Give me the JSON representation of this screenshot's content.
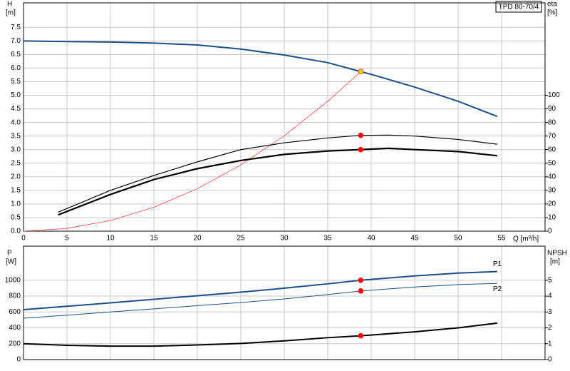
{
  "chart_data": [
    {
      "type": "line",
      "title": "TPD 80-70/4",
      "y_label": "H",
      "y_unit": "[m]",
      "y2_label": "eta",
      "y2_unit": "[%]",
      "x_label": "Q [m³/h]",
      "xlim": [
        0,
        60
      ],
      "xticks": [
        0,
        5,
        10,
        15,
        20,
        25,
        30,
        35,
        40,
        45,
        50,
        55
      ],
      "ylim": [
        0,
        8.4
      ],
      "yticks": [
        {
          "value": 0,
          "label": "0.0"
        },
        {
          "value": 0.5,
          "label": "0.5"
        },
        {
          "value": 1,
          "label": "1.0"
        },
        {
          "value": 1.5,
          "label": "1.5"
        },
        {
          "value": 2,
          "label": "2.0"
        },
        {
          "value": 2.5,
          "label": "2.5"
        },
        {
          "value": 3,
          "label": "3.0"
        },
        {
          "value": 3.5,
          "label": "3.5"
        },
        {
          "value": 4,
          "label": "4.0"
        },
        {
          "value": 4.5,
          "label": "4.5"
        },
        {
          "value": 5,
          "label": "5.0"
        },
        {
          "value": 5.5,
          "label": "5.5"
        },
        {
          "value": 6,
          "label": "6.0"
        },
        {
          "value": 6.5,
          "label": "6.5"
        },
        {
          "value": 7,
          "label": "7.0"
        },
        {
          "value": 7.5,
          "label": "7.5"
        }
      ],
      "y2lim": [
        0,
        168
      ],
      "y2ticks": [
        0,
        10,
        20,
        30,
        40,
        50,
        60,
        70,
        80,
        90,
        100
      ],
      "grid": true,
      "series": [
        {
          "color": "#ff4a4a",
          "width": 0.8,
          "x": [
            0,
            5,
            10,
            15,
            20,
            25,
            30,
            35,
            38.8
          ],
          "values": [
            0,
            0.1,
            0.39,
            0.88,
            1.56,
            2.44,
            3.51,
            4.78,
            5.87
          ]
        },
        {
          "color": "#1b4f8a",
          "width": 2,
          "x": [
            0,
            4,
            10,
            15,
            20,
            25,
            30,
            35,
            38.8,
            40,
            45,
            50,
            54.5
          ],
          "values": [
            7.0,
            6.98,
            6.96,
            6.92,
            6.85,
            6.7,
            6.48,
            6.2,
            5.87,
            5.77,
            5.3,
            4.78,
            4.22
          ],
          "marker_index": 8,
          "marker_color": "#ffd400"
        },
        {
          "color": "#000000",
          "width": 1.2,
          "axis": "y2",
          "x": [
            4,
            10,
            15,
            20,
            25,
            30,
            35,
            38.8,
            42,
            45,
            50,
            54.5
          ],
          "values": [
            14,
            30,
            41,
            51,
            60,
            65,
            68.6,
            70.5,
            70.7,
            70,
            67.5,
            64
          ],
          "marker_index": 7,
          "marker_color": "#ff0000"
        },
        {
          "color": "#000000",
          "width": 2.2,
          "axis": "y2",
          "x": [
            4,
            10,
            15,
            20,
            25,
            30,
            35,
            38.8,
            42,
            45,
            50,
            54.5
          ],
          "values": [
            12,
            27,
            38,
            46,
            52,
            56.5,
            59,
            60,
            61,
            60,
            58.6,
            55.5
          ],
          "marker_index": 7,
          "marker_color": "#ff0000"
        }
      ]
    },
    {
      "type": "line",
      "y_label": "P",
      "y_unit": "[W]",
      "y2_label": "NPSH",
      "y2_unit": "[m]",
      "ylim": [
        0,
        1430
      ],
      "yticks": [
        0,
        200,
        400,
        600,
        800,
        1000
      ],
      "y2lim": [
        0,
        7.15
      ],
      "y2ticks": [
        0,
        1,
        2,
        3,
        4,
        5
      ],
      "grid": true,
      "series": [
        {
          "name": "P1",
          "color": "#1b4f8a",
          "width": 2,
          "x": [
            0,
            5,
            10,
            15,
            20,
            25,
            30,
            35,
            38.8,
            45,
            50,
            54.5
          ],
          "values": [
            630,
            672,
            715,
            760,
            805,
            850,
            900,
            955,
            1000,
            1055,
            1090,
            1110
          ],
          "marker_index": 8,
          "marker_color": "#ff0000"
        },
        {
          "name": "P2",
          "color": "#1b4f8a",
          "width": 1,
          "x": [
            0,
            5,
            10,
            15,
            20,
            25,
            30,
            35,
            38.8,
            45,
            50,
            54.5
          ],
          "values": [
            522,
            560,
            600,
            640,
            680,
            720,
            765,
            820,
            865,
            915,
            945,
            960
          ],
          "marker_index": 8,
          "marker_color": "#ff0000"
        },
        {
          "color": "#000000",
          "width": 2,
          "axis": "y2",
          "x": [
            0,
            5,
            10,
            15,
            20,
            25,
            30,
            35,
            38.8,
            45,
            50,
            54.5
          ],
          "values": [
            1.0,
            0.9,
            0.85,
            0.85,
            0.92,
            1.02,
            1.18,
            1.38,
            1.5,
            1.75,
            2.0,
            2.3
          ],
          "marker_index": 8,
          "marker_color": "#ff0000"
        }
      ]
    }
  ]
}
